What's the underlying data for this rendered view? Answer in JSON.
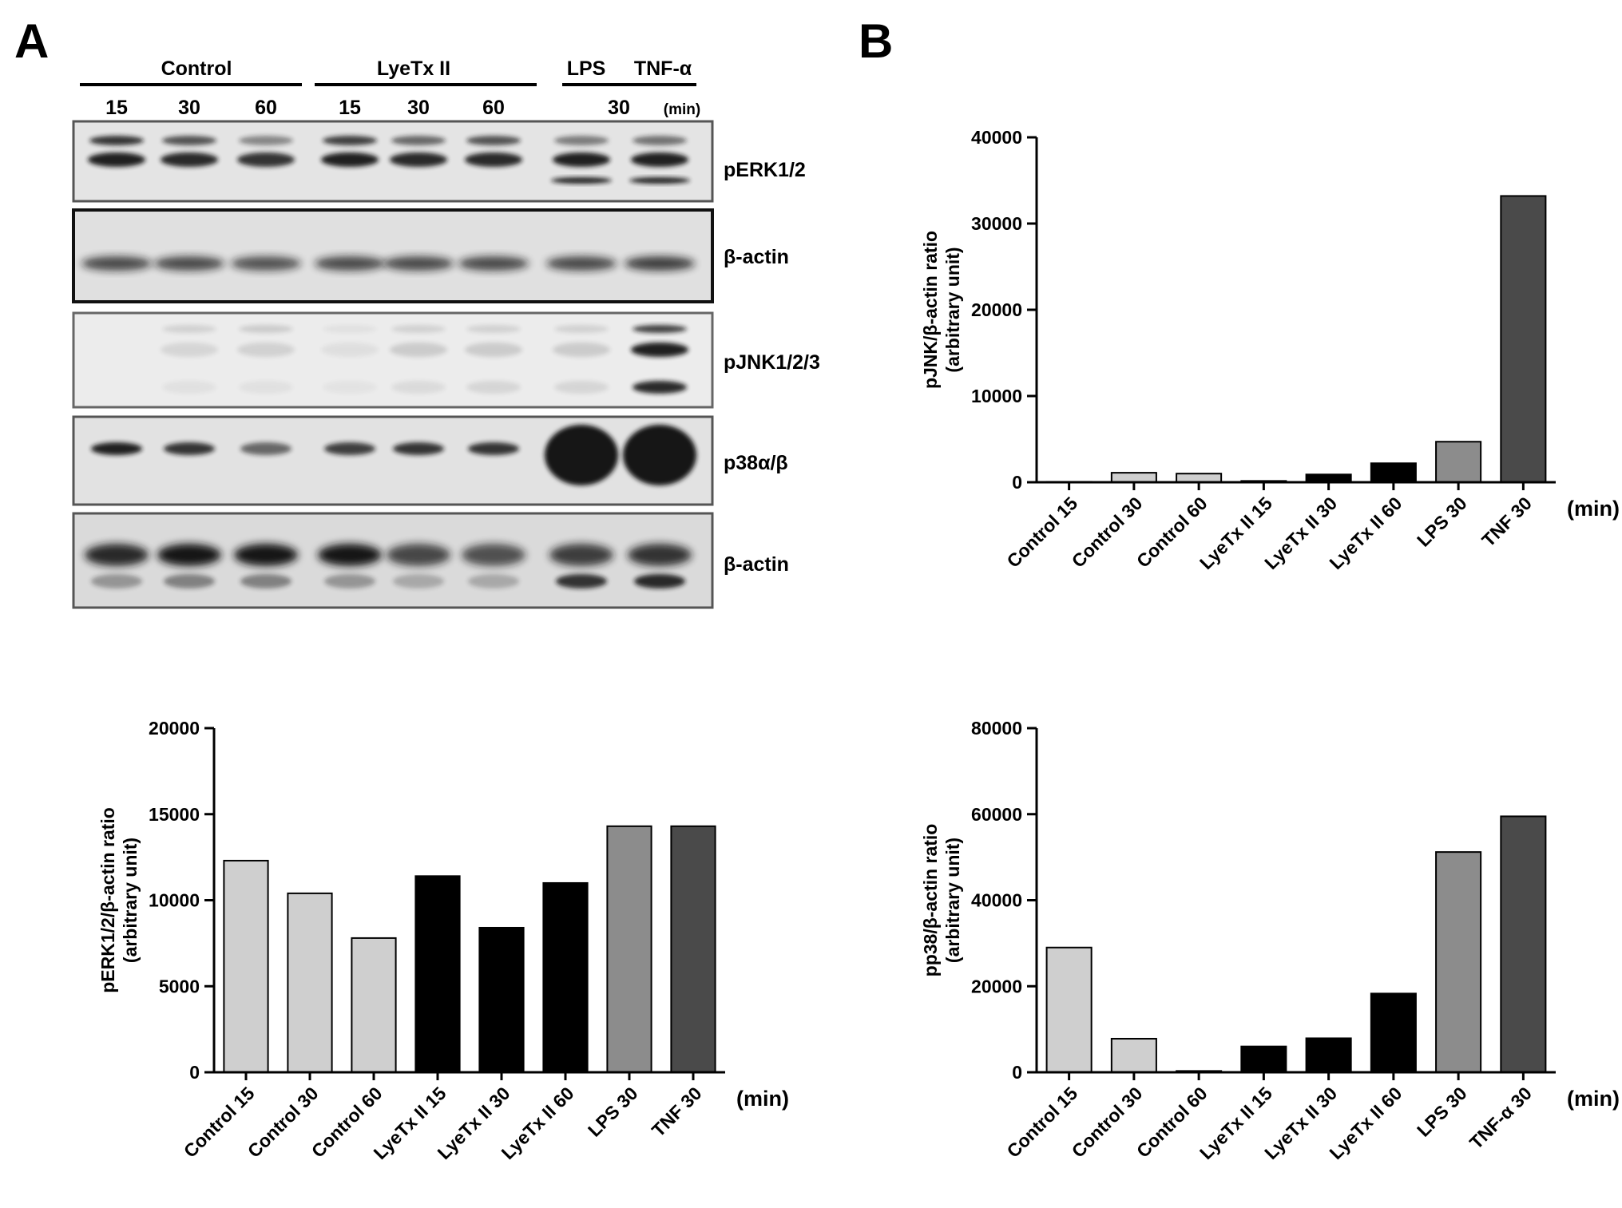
{
  "panels": {
    "a": "A",
    "b": "B"
  },
  "blot": {
    "groups": [
      "Control",
      "LyeTx II",
      "LPS",
      "TNF-α"
    ],
    "times": [
      "15",
      "30",
      "60",
      "15",
      "30",
      "60",
      "30"
    ],
    "time_unit": "(min)",
    "rows": [
      "pERK1/2",
      "β-actin",
      "pJNK1/2/3",
      "p38α/β",
      "β-actin"
    ],
    "colors": {
      "band": "#141414",
      "background": "#e2e2e2",
      "border": "#555555"
    }
  },
  "chart_data": [
    {
      "type": "bar",
      "ylabel_line1": "pJNK/β-actin ratio",
      "ylabel_line2": "(arbitrary unit)",
      "xunit": "(min)",
      "categories": [
        "Control 15",
        "Control 30",
        "Control 60",
        "LyeTx II 15",
        "LyeTx II 30",
        "LyeTx II 60",
        "LPS 30",
        "TNF 30"
      ],
      "values": [
        50,
        1100,
        1000,
        150,
        900,
        2200,
        4700,
        33200
      ],
      "colors": [
        "#cfcfcf",
        "#cfcfcf",
        "#cfcfcf",
        "#000000",
        "#000000",
        "#000000",
        "#8c8c8c",
        "#4a4a4a"
      ],
      "ylim": [
        0,
        40000
      ],
      "yticks": [
        "0",
        "10000",
        "20000",
        "30000",
        "40000"
      ]
    },
    {
      "type": "bar",
      "ylabel_line1": "pERK1/2/β-actin ratio",
      "ylabel_line2": "(arbitrary unit)",
      "xunit": "(min)",
      "categories": [
        "Control 15",
        "Control 30",
        "Control 60",
        "LyeTx II 15",
        "LyeTx II 30",
        "LyeTx II 60",
        "LPS 30",
        "TNF 30"
      ],
      "values": [
        12300,
        10400,
        7800,
        11400,
        8400,
        11000,
        14300,
        14300
      ],
      "colors": [
        "#cfcfcf",
        "#cfcfcf",
        "#cfcfcf",
        "#000000",
        "#000000",
        "#000000",
        "#8c8c8c",
        "#4a4a4a"
      ],
      "ylim": [
        0,
        20000
      ],
      "yticks": [
        "0",
        "5000",
        "10000",
        "15000",
        "20000"
      ]
    },
    {
      "type": "bar",
      "ylabel_line1": "pp38/β-actin ratio",
      "ylabel_line2": "(arbitrary unit)",
      "xunit": "(min)",
      "categories": [
        "Control 15",
        "Control 30",
        "Control 60",
        "LyeTx II 15",
        "LyeTx II 30",
        "LyeTx II 60",
        "LPS 30",
        "TNF-α 30"
      ],
      "values": [
        29000,
        7800,
        300,
        6000,
        7900,
        18300,
        51200,
        59500
      ],
      "colors": [
        "#cfcfcf",
        "#cfcfcf",
        "#cfcfcf",
        "#000000",
        "#000000",
        "#000000",
        "#8c8c8c",
        "#4a4a4a"
      ],
      "ylim": [
        0,
        80000
      ],
      "yticks": [
        "0",
        "20000",
        "40000",
        "60000",
        "80000"
      ]
    }
  ]
}
